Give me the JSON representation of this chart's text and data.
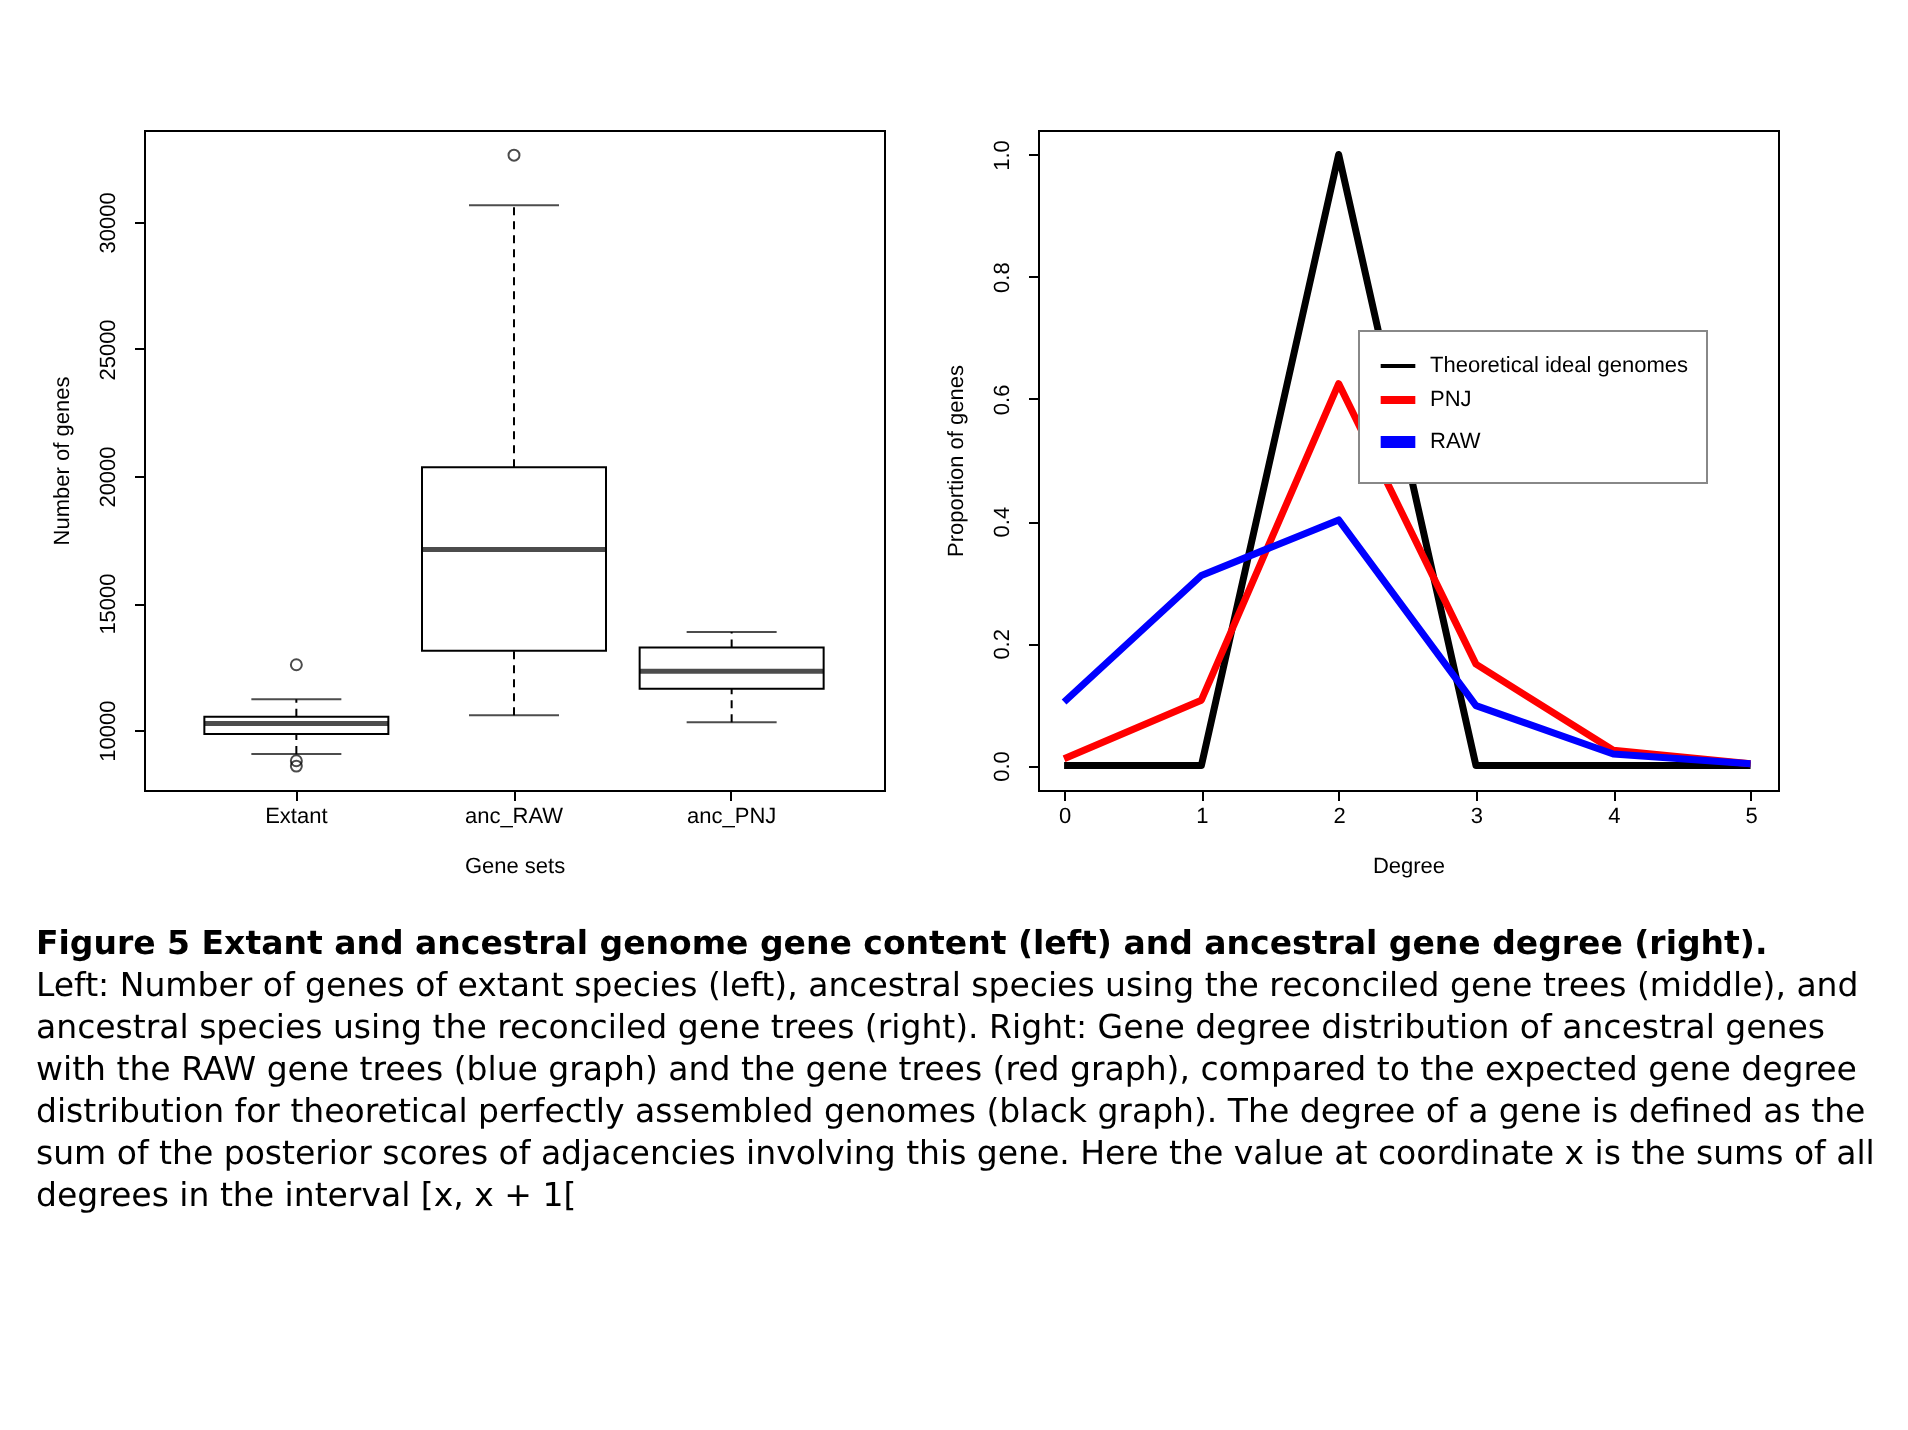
{
  "chart_data": [
    {
      "type": "box",
      "xlabel": "Gene sets",
      "ylabel": "Number of genes",
      "categories": [
        "Extant",
        "anc_RAW",
        "anc_PNJ"
      ],
      "boxes": [
        {
          "low": 9055,
          "q1": 9840,
          "median": 10260,
          "q3": 10520,
          "high": 11210,
          "outliers": [
            12570,
            8790,
            8580
          ]
        },
        {
          "low": 10580,
          "q1": 13120,
          "median": 17110,
          "q3": 20340,
          "high": 30660,
          "outliers": [
            32630
          ]
        },
        {
          "low": 10310,
          "q1": 11630,
          "median": 12310,
          "q3": 13250,
          "high": 13860
        }
      ],
      "ylim": [
        7640,
        33620
      ],
      "yticks": [
        10000,
        15000,
        20000,
        25000,
        30000
      ],
      "annotations": [
        "Figure 5   Extant and ancestral genome gene content (left) and ancestral gene degree (right).",
        "Left: Number of genes of extant species (left), ancestral species using the reconciled gene trees (middle), and ancestral species using the reconciled gene trees (right). Right: Gene degree distribution of ancestral genes with the RAW gene trees (blue graph) and the gene trees (red graph), compared to the expected gene degree distribution for theoretical perfectly assembled genomes (black graph). The degree of a gene is defined as the sum of the posterior scores of adjacencies involving this gene. Here the value at coordinate x is the sums of all degrees in the interval [x, x + 1["
      ]
    },
    {
      "type": "line",
      "xlabel": "Degree",
      "ylabel": "Proportion of genes",
      "x": [
        0,
        1,
        2,
        3,
        4,
        5
      ],
      "series": [
        {
          "name": "Theoretical ideal genomes",
          "color": "#000000",
          "values": [
            0,
            0,
            1,
            0,
            0,
            0
          ]
        },
        {
          "name": "PNJ",
          "color": "#ff0000",
          "values": [
            0.011,
            0.107,
            0.625,
            0.166,
            0.025,
            0.003
          ]
        },
        {
          "name": "RAW",
          "color": "#0000ff",
          "values": [
            0.104,
            0.311,
            0.402,
            0.098,
            0.019,
            0.003
          ]
        }
      ],
      "xlim": [
        -0.19,
        5.2
      ],
      "xticks": [
        0,
        1,
        2,
        3,
        4,
        5
      ],
      "ylim": [
        -0.04,
        1.04
      ],
      "yticks": [
        {
          "value": 0,
          "label": "0.0"
        },
        0.2,
        0.4,
        0.6,
        0.8,
        {
          "value": 1,
          "label": "1.0"
        }
      ],
      "legend": "top right"
    }
  ]
}
